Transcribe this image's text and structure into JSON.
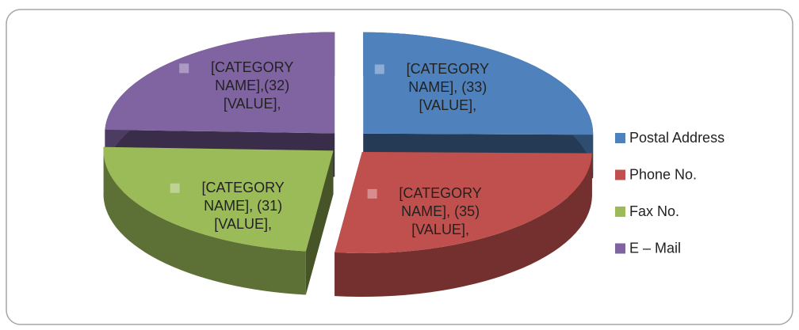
{
  "chart_data": {
    "type": "pie3d",
    "categories": [
      "Postal Address",
      "Phone No.",
      "Fax No.",
      "E – Mail"
    ],
    "values": [
      33,
      35,
      31,
      32
    ],
    "value_labels": [
      "[CATEGORY NAME], (33) [VALUE],",
      "[CATEGORY NAME], (35) [VALUE],",
      "[CATEGORY NAME], (31) [VALUE],",
      "[CATEGORY NAME],(32) [VALUE],"
    ],
    "colors": [
      "#4f81bd",
      "#c0504d",
      "#9bbb59",
      "#8064a2"
    ],
    "legend": "right"
  }
}
